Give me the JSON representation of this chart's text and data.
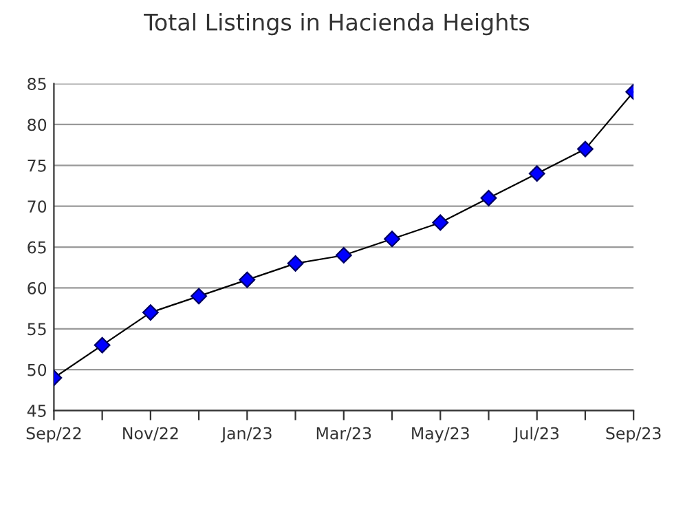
{
  "chart_data": {
    "type": "line",
    "title": "Total Listings in Hacienda Heights",
    "categories": [
      "Sep/22",
      null,
      "Nov/22",
      null,
      "Jan/23",
      null,
      "Mar/23",
      null,
      "May/23",
      null,
      "Jul/23",
      null,
      "Sep/23"
    ],
    "series": [
      {
        "color": "#0000ff",
        "values": [
          49,
          53,
          57,
          59,
          61,
          63,
          64,
          66,
          68,
          71,
          74,
          77,
          84
        ]
      }
    ],
    "ylim": [
      45,
      85
    ],
    "yticks": [
      45,
      50,
      55,
      60,
      65,
      70,
      75,
      80,
      85
    ],
    "grid": "y",
    "marker": "diamond",
    "line_style": "solid",
    "legend": false
  }
}
